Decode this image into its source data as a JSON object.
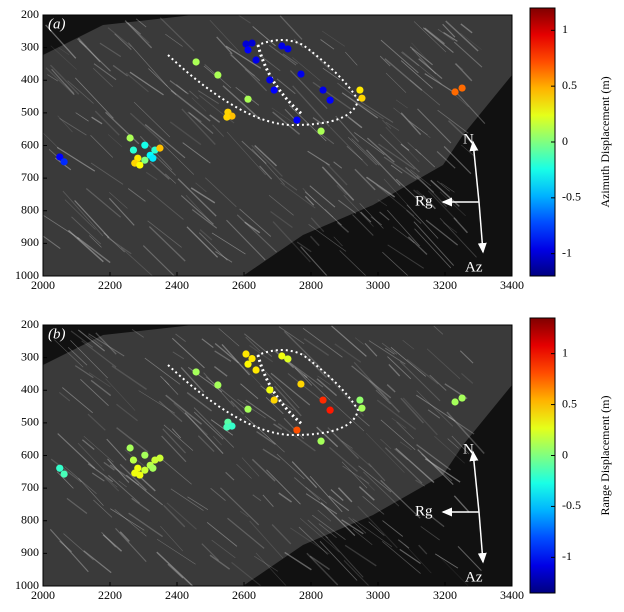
{
  "chart_data": [
    {
      "type": "scatter",
      "panel_label": "(a)",
      "x": [
        2050,
        2063,
        2260,
        2270,
        2283,
        2274,
        2304,
        2320,
        2334,
        2349,
        2304,
        2289,
        2328,
        2457,
        2522,
        2552,
        2564,
        2549,
        2612,
        2606,
        2624,
        2612,
        2636,
        2713,
        2731,
        2677,
        2690,
        2770,
        2836,
        2857,
        2758,
        2830,
        2946,
        2952,
        3230,
        3251
      ],
      "y": [
        635,
        650,
        577,
        614,
        639,
        654,
        599,
        630,
        614,
        608,
        645,
        660,
        639,
        344,
        384,
        498,
        510,
        513,
        458,
        289,
        286,
        307,
        338,
        295,
        304,
        399,
        430,
        381,
        430,
        461,
        522,
        556,
        430,
        455,
        436,
        424
      ],
      "values": [
        -0.9,
        -0.8,
        0.1,
        -0.2,
        0.35,
        0.4,
        -0.25,
        -0.3,
        -0.2,
        0.45,
        0,
        0.3,
        -0.35,
        0.1,
        0.1,
        0.4,
        0.45,
        0.4,
        0.1,
        -1,
        -1,
        -0.9,
        -0.95,
        -0.95,
        -0.95,
        -0.95,
        -0.9,
        -0.95,
        -0.95,
        -0.9,
        -0.9,
        0.1,
        0.35,
        0.4,
        0.65,
        0.65
      ],
      "colorbar": {
        "label": "Azimuth Displacement (m)",
        "clim": [
          -1.2,
          1.2
        ],
        "ticks": [
          -1,
          -0.5,
          0,
          0.5,
          1
        ],
        "colormap": "jet"
      },
      "xlim": [
        2000,
        3400
      ],
      "xticks": [
        2000,
        2200,
        2400,
        2600,
        2800,
        3000,
        3200,
        3400
      ],
      "ylim": [
        1000,
        200
      ],
      "yticks": [
        200,
        300,
        400,
        500,
        600,
        700,
        800,
        900,
        1000
      ],
      "annotations": {
        "north": "N",
        "range": "Rg",
        "azimuth": "Az"
      }
    },
    {
      "type": "scatter",
      "panel_label": "(b)",
      "x": [
        2050,
        2063,
        2260,
        2270,
        2283,
        2274,
        2304,
        2320,
        2334,
        2349,
        2304,
        2289,
        2328,
        2457,
        2522,
        2552,
        2564,
        2549,
        2612,
        2606,
        2624,
        2612,
        2636,
        2713,
        2731,
        2677,
        2690,
        2770,
        2836,
        2857,
        2758,
        2830,
        2946,
        2952,
        3230,
        3251
      ],
      "y": [
        639,
        657,
        577,
        614,
        639,
        654,
        599,
        630,
        614,
        608,
        645,
        660,
        639,
        344,
        384,
        498,
        510,
        513,
        458,
        289,
        303,
        320,
        338,
        295,
        304,
        399,
        430,
        381,
        430,
        461,
        522,
        556,
        430,
        455,
        436,
        424
      ],
      "values": [
        -0.2,
        -0.15,
        0.1,
        0.15,
        0.3,
        0.3,
        0.1,
        0.15,
        0.2,
        0.2,
        0.2,
        0.3,
        0.1,
        0.1,
        0.1,
        -0.1,
        -0.2,
        -0.15,
        0.1,
        0.4,
        0.4,
        0.35,
        0.4,
        0.3,
        0.25,
        0.3,
        0.45,
        0.45,
        0.9,
        0.95,
        0.8,
        0.1,
        0.05,
        0.1,
        0.1,
        0.1
      ],
      "colorbar": {
        "label": "Range Displacement (m)",
        "clim": [
          -1.35,
          1.35
        ],
        "ticks": [
          -1,
          -0.5,
          0,
          0.5,
          1
        ],
        "colormap": "jet"
      },
      "xlim": [
        2000,
        3400
      ],
      "xticks": [
        2000,
        2200,
        2400,
        2600,
        2800,
        3000,
        3200,
        3400
      ],
      "ylim": [
        1000,
        200
      ],
      "yticks": [
        200,
        300,
        400,
        500,
        600,
        700,
        800,
        900,
        1000
      ],
      "annotations": {
        "north": "N",
        "range": "Rg",
        "azimuth": "Az"
      }
    }
  ]
}
